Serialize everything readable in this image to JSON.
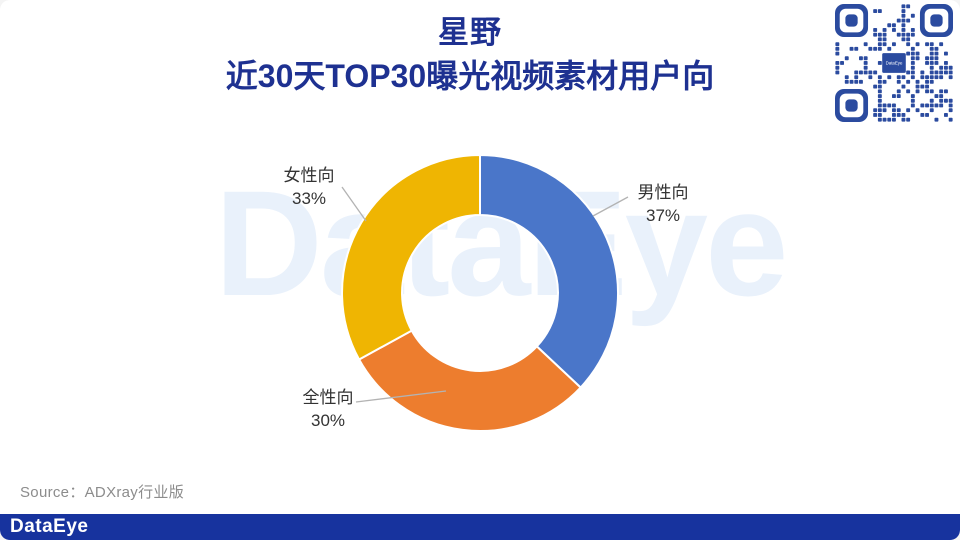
{
  "header": {
    "title_line1": "星野",
    "title_line2": "近30天TOP30曝光视频素材用户向",
    "title_color": "#1e3191"
  },
  "watermark": {
    "text": "DataEye",
    "color": "#e9f1fb"
  },
  "qr_code": {
    "center_label": "DataEye",
    "module_color": "#2b4b9f"
  },
  "chart_data": {
    "type": "pie",
    "subtype": "donut",
    "title": "星野 近30天TOP30曝光视频素材用户向",
    "unit": "%",
    "direction": "clockwise",
    "start_angle": "12-oclock",
    "inner_radius_ratio": 0.565,
    "legend": "none",
    "labels_style": "outside-with-leader-lines",
    "slices": [
      {
        "name": "男性向",
        "value": 37,
        "value_label": "37%",
        "color": "#4a76c9"
      },
      {
        "name": "全性向",
        "value": 30,
        "value_label": "30%",
        "color": "#ed7d2e"
      },
      {
        "name": "女性向",
        "value": 33,
        "value_label": "33%",
        "color": "#efb502"
      }
    ]
  },
  "footer": {
    "source": "Source：ADXray行业版",
    "logo_text": "DataEye",
    "bar_color": "#17339e"
  }
}
